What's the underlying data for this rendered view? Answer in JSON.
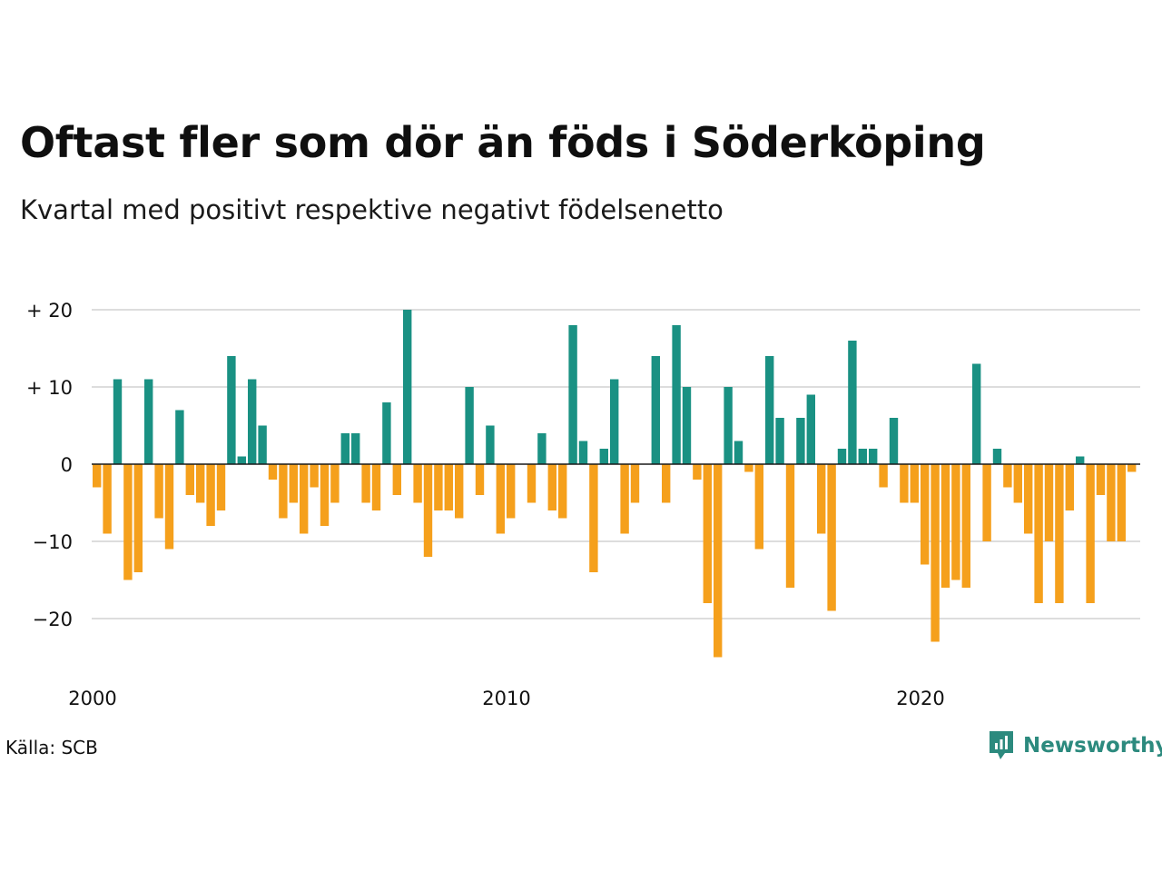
{
  "header": {
    "title": "Oftast fler som dör än föds i Söderköping",
    "subtitle": "Kvartal med positivt respektive negativt födelsenetto"
  },
  "footer": {
    "source": "Källa: SCB",
    "brand": "Newsworthy"
  },
  "colors": {
    "positive": "#1a9183",
    "negative": "#f5a01c",
    "grid": "#dddddd",
    "brand": "#2c8a7e"
  },
  "chart_data": {
    "type": "bar",
    "start_year": 2000,
    "start_quarter": 1,
    "ylim": [
      -25,
      20
    ],
    "yticks": [
      {
        "value": 20,
        "label": "+ 20"
      },
      {
        "value": 10,
        "label": "+ 10"
      },
      {
        "value": 0,
        "label": "0"
      },
      {
        "value": -10,
        "label": "−10"
      },
      {
        "value": -20,
        "label": "−20"
      }
    ],
    "xticks": [
      {
        "year": 2000,
        "label": "2000"
      },
      {
        "year": 2010,
        "label": "2010"
      },
      {
        "year": 2020,
        "label": "2020"
      }
    ],
    "values": [
      -3,
      -9,
      11,
      -15,
      -14,
      11,
      -7,
      -11,
      7,
      -4,
      -5,
      -8,
      -6,
      14,
      1,
      11,
      5,
      -2,
      -7,
      -5,
      -9,
      -3,
      -8,
      -5,
      4,
      4,
      -5,
      -6,
      8,
      -4,
      20,
      -5,
      -12,
      -6,
      -6,
      -7,
      10,
      -4,
      5,
      -9,
      -7,
      0,
      -5,
      4,
      -6,
      -7,
      18,
      3,
      -14,
      2,
      11,
      -9,
      -5,
      0,
      14,
      -5,
      18,
      10,
      -2,
      -18,
      -25,
      10,
      3,
      -1,
      -11,
      14,
      6,
      -16,
      6,
      9,
      -9,
      -19,
      2,
      16,
      2,
      2,
      -3,
      6,
      -5,
      -5,
      -13,
      -23,
      -16,
      -15,
      -16,
      13,
      -10,
      2,
      -3,
      -5,
      -9,
      -18,
      -10,
      -18,
      -6,
      1,
      -18,
      -4,
      -10,
      -10,
      -1
    ]
  }
}
